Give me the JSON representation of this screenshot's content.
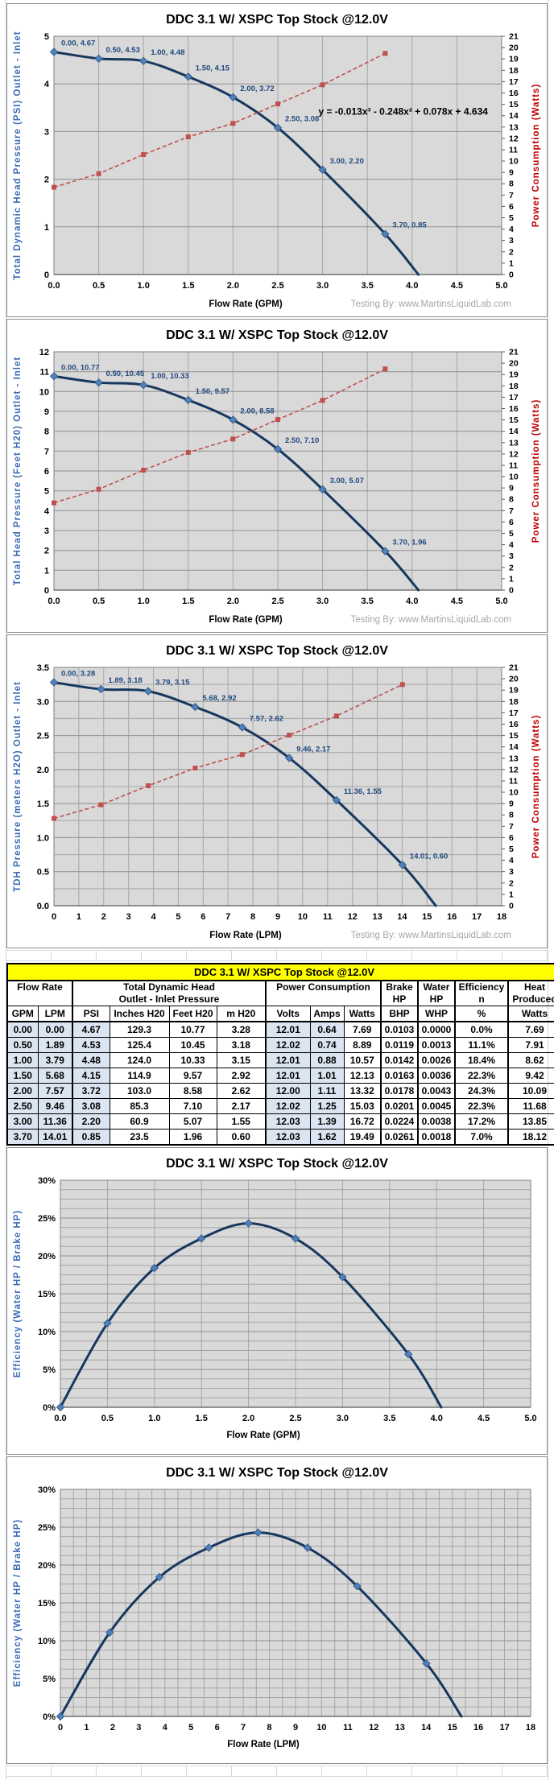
{
  "table": {
    "title": "DDC 3.1 W/ XSPC Top Stock @12.0V",
    "group_headers": [
      {
        "line1": "Flow Rate",
        "line2": ""
      },
      {
        "line1": "Total Dynamic Head",
        "line2": "Outlet - Inlet Pressure"
      },
      {
        "line1": "Power Consumption",
        "line2": ""
      },
      {
        "line1": "Brake",
        "line2": "HP"
      },
      {
        "line1": "Water",
        "line2": "HP"
      },
      {
        "line1": "Efficiency",
        "line2": "n"
      },
      {
        "line1": "Heat",
        "line2": "Produced"
      }
    ],
    "columns": [
      "GPM",
      "LPM",
      "PSI",
      "Inches H20",
      "Feet H20",
      "m H20",
      "Volts",
      "Amps",
      "Watts",
      "BHP",
      "WHP",
      "%",
      "Watts"
    ],
    "highlight_cols": [
      0,
      1,
      2,
      6,
      7
    ],
    "rows": [
      [
        "0.00",
        "0.00",
        "4.67",
        "129.3",
        "10.77",
        "3.28",
        "12.01",
        "0.64",
        "7.69",
        "0.0103",
        "0.0000",
        "0.0%",
        "7.69"
      ],
      [
        "0.50",
        "1.89",
        "4.53",
        "125.4",
        "10.45",
        "3.18",
        "12.02",
        "0.74",
        "8.89",
        "0.0119",
        "0.0013",
        "11.1%",
        "7.91"
      ],
      [
        "1.00",
        "3.79",
        "4.48",
        "124.0",
        "10.33",
        "3.15",
        "12.01",
        "0.88",
        "10.57",
        "0.0142",
        "0.0026",
        "18.4%",
        "8.62"
      ],
      [
        "1.50",
        "5.68",
        "4.15",
        "114.9",
        "9.57",
        "2.92",
        "12.01",
        "1.01",
        "12.13",
        "0.0163",
        "0.0036",
        "22.3%",
        "9.42"
      ],
      [
        "2.00",
        "7.57",
        "3.72",
        "103.0",
        "8.58",
        "2.62",
        "12.00",
        "1.11",
        "13.32",
        "0.0178",
        "0.0043",
        "24.3%",
        "10.09"
      ],
      [
        "2.50",
        "9.46",
        "3.08",
        "85.3",
        "7.10",
        "2.17",
        "12.02",
        "1.25",
        "15.03",
        "0.0201",
        "0.0045",
        "22.3%",
        "11.68"
      ],
      [
        "3.00",
        "11.36",
        "2.20",
        "60.9",
        "5.07",
        "1.55",
        "12.03",
        "1.39",
        "16.72",
        "0.0224",
        "0.0038",
        "17.2%",
        "13.85"
      ],
      [
        "3.70",
        "14.01",
        "0.85",
        "23.5",
        "1.96",
        "0.60",
        "12.03",
        "1.62",
        "19.49",
        "0.0261",
        "0.0018",
        "7.0%",
        "18.12"
      ]
    ]
  },
  "colors": {
    "curve": "#17375E",
    "marker": "#4F81BD",
    "marker_edge": "#385D8A",
    "power": "#C0504D",
    "plot_bg": "#D9D9D9",
    "grid": "#A6A6A6",
    "grid_major": "#8F8F8F",
    "axis_blue": "#3B6CB9",
    "axis_red": "#C00000",
    "label_blue": "#1F497D",
    "credit_gray": "#A6A6A6",
    "table_yellow": "#FFFF00",
    "table_blue": "#DBE5F1"
  },
  "chart_data": [
    {
      "type": "line",
      "title": "DDC 3.1 W/ XSPC Top Stock @12.0V",
      "xlabel": "Flow Rate (GPM)",
      "ylabel_left": "Total Dynamic Head Pressure (PSI)  Outlet - Inlet",
      "ylabel_right": "Power Consumption (Watts)",
      "credit": "Testing By: www.MartinsLiquidLab.com",
      "annotation": "y = -0.013x³ - 0.248x² + 0.078x + 4.634",
      "x_axis": {
        "min": 0,
        "max": 5,
        "grid": 0.5,
        "tick": 0.5,
        "decimals": 1
      },
      "left_axis": {
        "min": 0,
        "max": 5,
        "grid": 1,
        "tick": 1,
        "decimals": 0
      },
      "right_axis": {
        "min": 0,
        "max": 21,
        "tick": 1,
        "decimals": 0
      },
      "series": [
        {
          "name": "Head Pressure (PSI)",
          "axis": "left",
          "labels": true,
          "extend": [
            4.07,
            0
          ],
          "x": [
            0.0,
            0.5,
            1.0,
            1.5,
            2.0,
            2.5,
            3.0,
            3.7
          ],
          "y": [
            4.67,
            4.53,
            4.48,
            4.15,
            3.72,
            3.08,
            2.2,
            0.85
          ]
        },
        {
          "name": "Power Consumption (Watts)",
          "axis": "right",
          "dashed": true,
          "x": [
            0.0,
            0.5,
            1.0,
            1.5,
            2.0,
            2.5,
            3.0,
            3.7
          ],
          "y": [
            7.69,
            8.89,
            10.57,
            12.13,
            13.32,
            15.03,
            16.72,
            19.49
          ]
        }
      ]
    },
    {
      "type": "line",
      "title": "DDC 3.1 W/ XSPC Top Stock @12.0V",
      "xlabel": "Flow Rate (GPM)",
      "ylabel_left": "Total Head Pressure (Feet H20) Outlet - Inlet",
      "ylabel_right": "Power Consumption (Watts)",
      "credit": "Testing By: www.MartinsLiquidLab.com",
      "x_axis": {
        "min": 0,
        "max": 5,
        "grid": 0.5,
        "tick": 0.5,
        "decimals": 1
      },
      "left_axis": {
        "min": 0,
        "max": 12,
        "grid": 1,
        "tick": 1,
        "decimals": 0
      },
      "right_axis": {
        "min": 0,
        "max": 21,
        "tick": 1,
        "decimals": 0
      },
      "series": [
        {
          "name": "Head Pressure (Feet H20)",
          "axis": "left",
          "labels": true,
          "extend": [
            4.07,
            0
          ],
          "x": [
            0.0,
            0.5,
            1.0,
            1.5,
            2.0,
            2.5,
            3.0,
            3.7
          ],
          "y": [
            10.77,
            10.45,
            10.33,
            9.57,
            8.58,
            7.1,
            5.07,
            1.96
          ]
        },
        {
          "name": "Power Consumption (Watts)",
          "axis": "right",
          "dashed": true,
          "x": [
            0.0,
            0.5,
            1.0,
            1.5,
            2.0,
            2.5,
            3.0,
            3.7
          ],
          "y": [
            7.69,
            8.89,
            10.57,
            12.13,
            13.32,
            15.03,
            16.72,
            19.49
          ]
        }
      ]
    },
    {
      "type": "line",
      "title": "DDC 3.1 W/ XSPC Top Stock @12.0V",
      "xlabel": "Flow Rate (LPM)",
      "ylabel_left": "TDH Pressure (meters H2O)  Outlet - Inlet",
      "ylabel_right": "Power Consumption (Watts)",
      "credit": "Testing By: www.MartinsLiquidLab.com",
      "x_axis": {
        "min": 0,
        "max": 18,
        "grid": 1,
        "tick": 1,
        "decimals": 0
      },
      "left_axis": {
        "min": 0,
        "max": 3.5,
        "grid": 0.25,
        "tick": 0.5,
        "decimals": 1
      },
      "right_axis": {
        "min": 0,
        "max": 21,
        "tick": 1,
        "decimals": 0
      },
      "series": [
        {
          "name": "TDH Pressure (m H2O)",
          "axis": "left",
          "labels": true,
          "extend": [
            15.35,
            0
          ],
          "x": [
            0.0,
            1.89,
            3.79,
            5.68,
            7.57,
            9.46,
            11.36,
            14.01
          ],
          "y": [
            3.28,
            3.18,
            3.15,
            2.92,
            2.62,
            2.17,
            1.55,
            0.6
          ]
        },
        {
          "name": "Power Consumption (Watts)",
          "axis": "right",
          "dashed": true,
          "x": [
            0.0,
            1.89,
            3.79,
            5.68,
            7.57,
            9.46,
            11.36,
            14.01
          ],
          "y": [
            7.69,
            8.89,
            10.57,
            12.13,
            13.32,
            15.03,
            16.72,
            19.49
          ]
        }
      ]
    },
    {
      "type": "line",
      "title": "DDC 3.1 W/ XSPC Top Stock @12.0V",
      "xlabel": "Flow Rate (GPM)",
      "ylabel_left": "Efficiency (Water HP / Brake HP)",
      "x_axis": {
        "min": 0,
        "max": 5,
        "grid": 0.5,
        "tick": 0.5,
        "decimals": 1
      },
      "left_axis": {
        "min": 0,
        "max": 30,
        "grid": 1.25,
        "tick": 5,
        "decimals": 0,
        "percent": true
      },
      "series": [
        {
          "name": "Efficiency %",
          "axis": "left",
          "extend": [
            4.05,
            0
          ],
          "x": [
            0.0,
            0.5,
            1.0,
            1.5,
            2.0,
            2.5,
            3.0,
            3.7
          ],
          "y": [
            0.0,
            11.1,
            18.4,
            22.3,
            24.3,
            22.3,
            17.2,
            7.0
          ]
        }
      ]
    },
    {
      "type": "line",
      "title": "DDC 3.1 W/ XSPC Top Stock @12.0V",
      "xlabel": "Flow Rate (LPM)",
      "ylabel_left": "Efficiency (Water HP / Brake HP)",
      "x_axis": {
        "min": 0,
        "max": 18,
        "grid": 0.5,
        "tick": 1,
        "decimals": 0
      },
      "left_axis": {
        "min": 0,
        "max": 30,
        "grid": 1.25,
        "tick": 5,
        "decimals": 0,
        "percent": true
      },
      "series": [
        {
          "name": "Efficiency %",
          "axis": "left",
          "extend": [
            15.35,
            0
          ],
          "x": [
            0.0,
            1.89,
            3.79,
            5.68,
            7.57,
            9.46,
            11.36,
            14.01
          ],
          "y": [
            0.0,
            11.1,
            18.4,
            22.3,
            24.3,
            22.3,
            17.2,
            7.0
          ]
        }
      ]
    }
  ]
}
